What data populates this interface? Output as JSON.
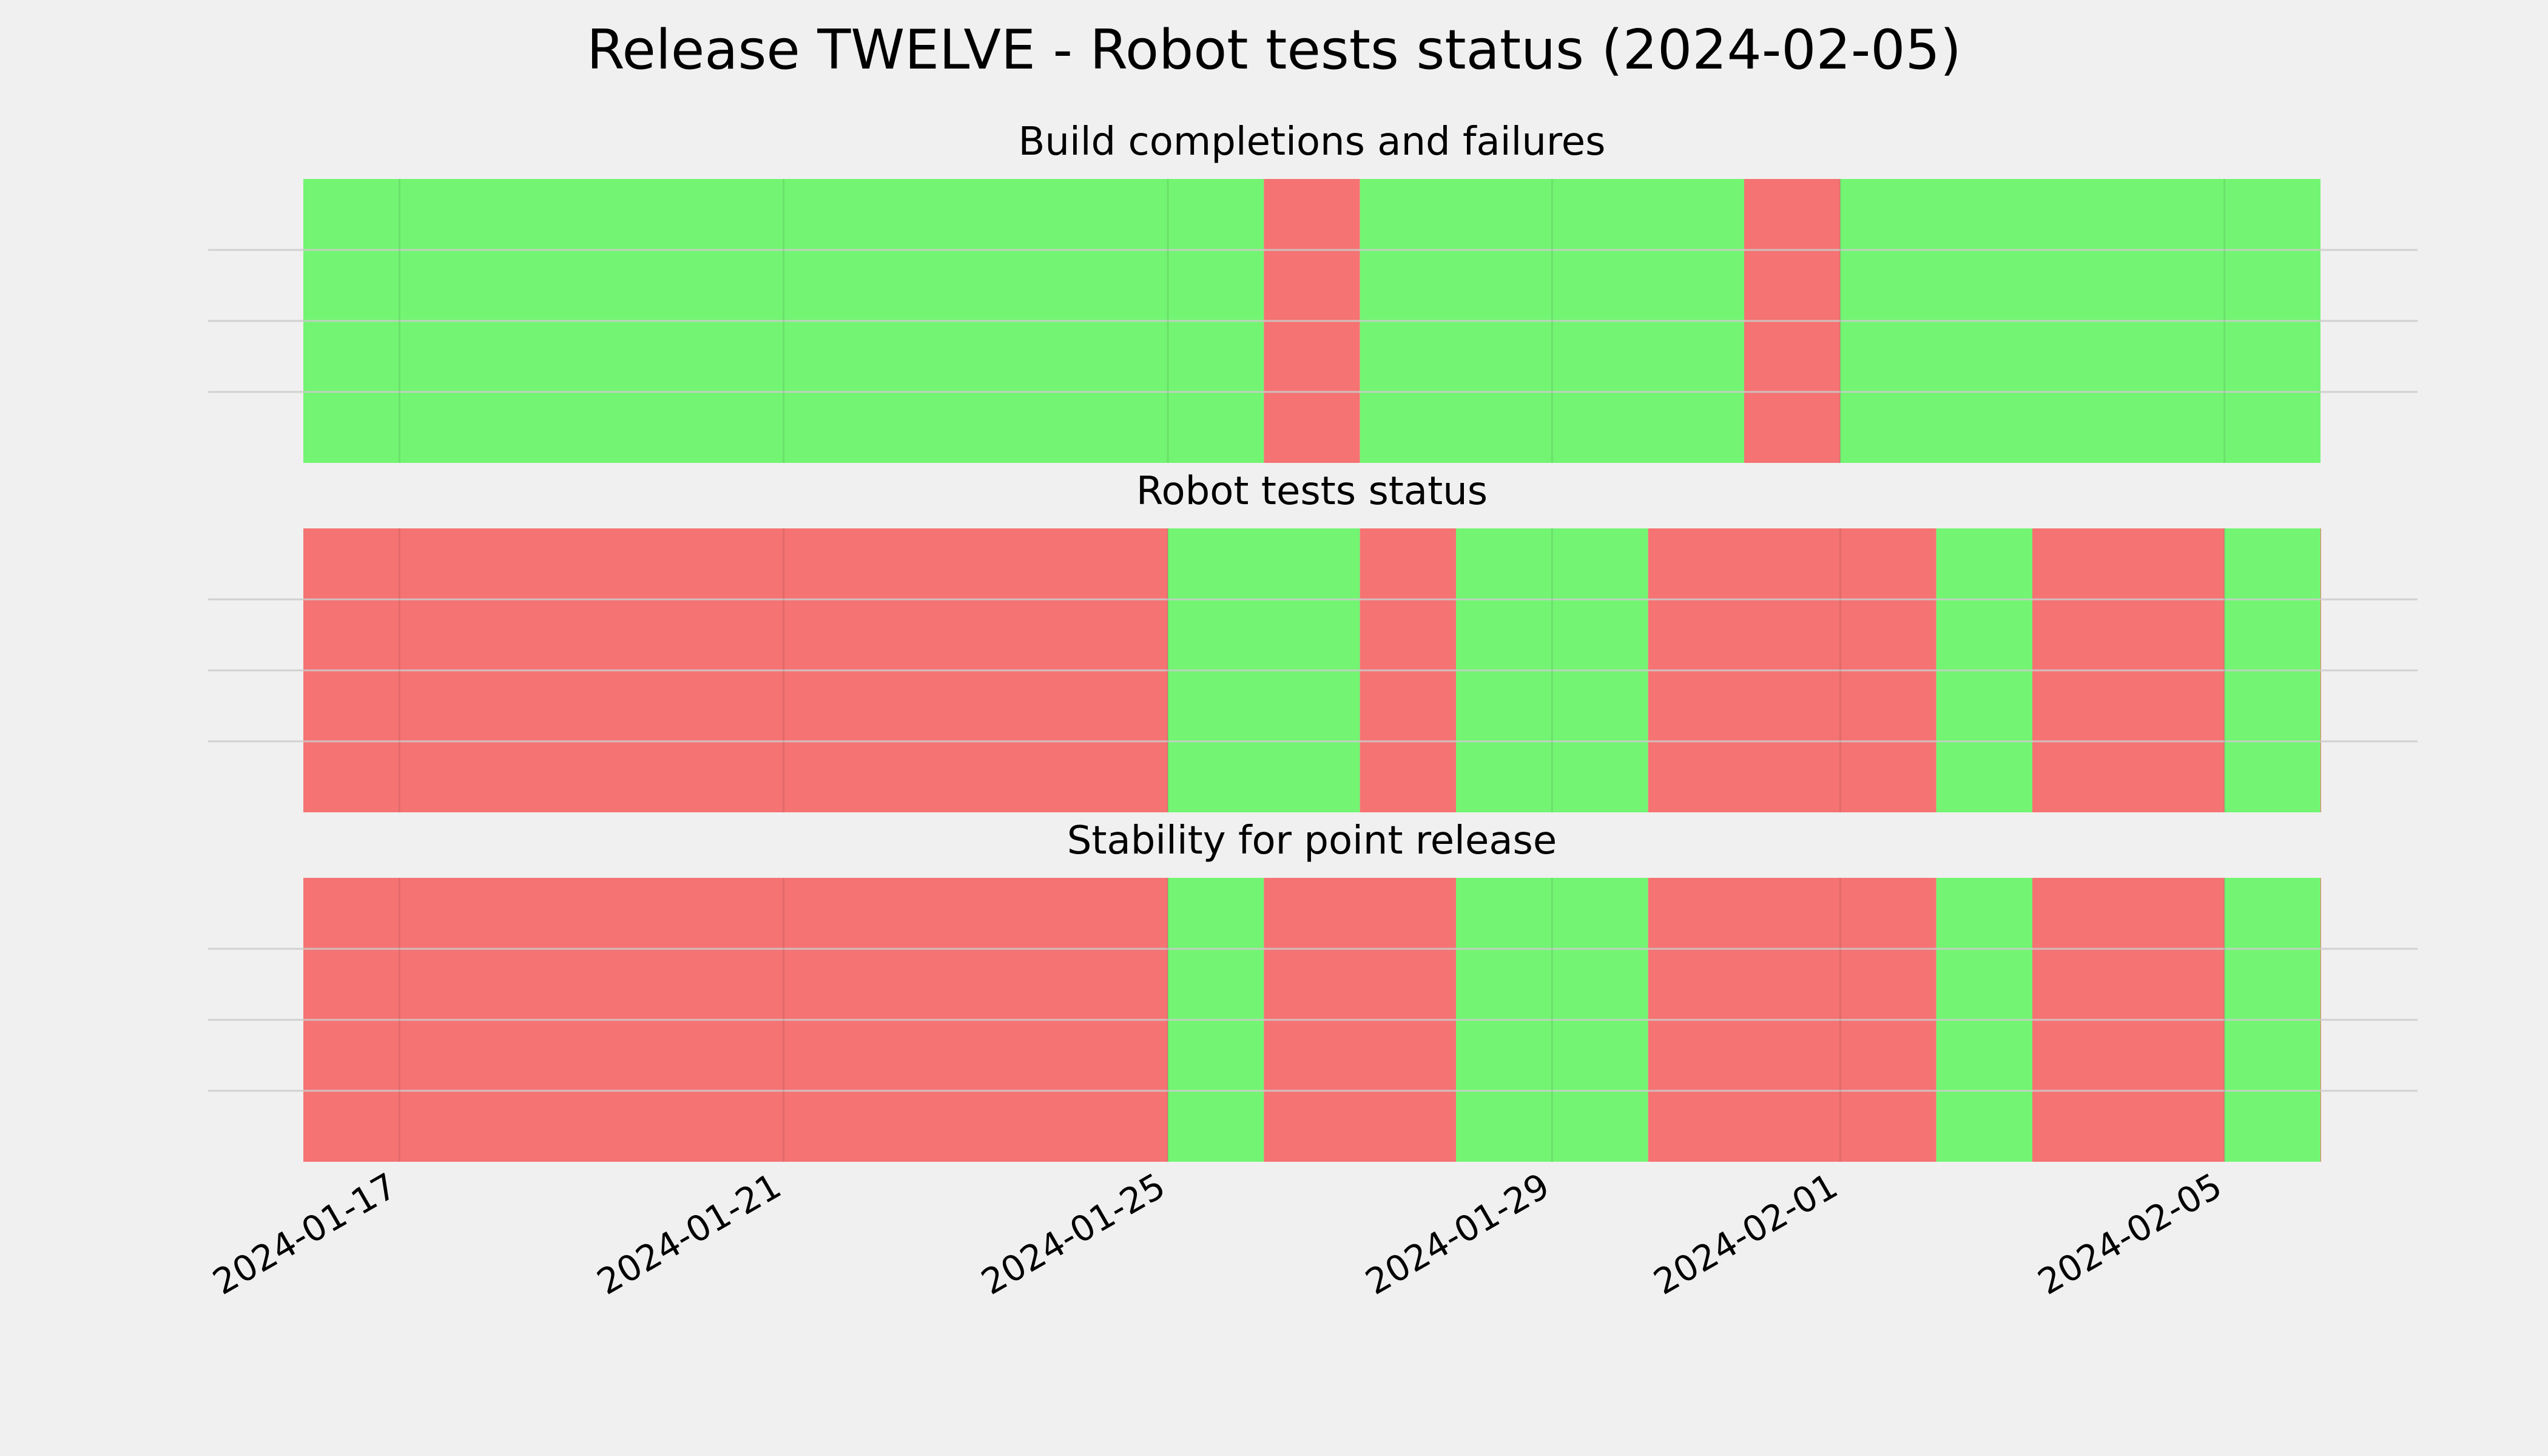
{
  "chart_data": {
    "type": "timeline",
    "title": "Release TWELVE - Robot tests status (2024-02-05)",
    "x_axis": {
      "type": "date",
      "range": [
        "2024-01-16",
        "2024-02-06"
      ],
      "ticks": [
        "2024-01-17",
        "2024-01-21",
        "2024-01-25",
        "2024-01-29",
        "2024-02-01",
        "2024-02-05"
      ],
      "tick_rotation_degrees": 30
    },
    "grid": true,
    "colors": {
      "pass": "#73f573",
      "fail": "#f57373",
      "background": "#f0f0f0",
      "grid": "#cbcbcb"
    },
    "panels": [
      {
        "title": "Build completions and failures",
        "segments": [
          {
            "start": "2024-01-16",
            "end": "2024-01-26",
            "status": "pass"
          },
          {
            "start": "2024-01-26",
            "end": "2024-01-27",
            "status": "fail"
          },
          {
            "start": "2024-01-27",
            "end": "2024-01-31",
            "status": "pass"
          },
          {
            "start": "2024-01-31",
            "end": "2024-02-01",
            "status": "fail"
          },
          {
            "start": "2024-02-01",
            "end": "2024-02-06",
            "status": "pass"
          }
        ]
      },
      {
        "title": "Robot tests status",
        "segments": [
          {
            "start": "2024-01-16",
            "end": "2024-01-25",
            "status": "fail"
          },
          {
            "start": "2024-01-25",
            "end": "2024-01-27",
            "status": "pass"
          },
          {
            "start": "2024-01-27",
            "end": "2024-01-28",
            "status": "fail"
          },
          {
            "start": "2024-01-28",
            "end": "2024-01-30",
            "status": "pass"
          },
          {
            "start": "2024-01-30",
            "end": "2024-02-02",
            "status": "fail"
          },
          {
            "start": "2024-02-02",
            "end": "2024-02-03",
            "status": "pass"
          },
          {
            "start": "2024-02-03",
            "end": "2024-02-05",
            "status": "fail"
          },
          {
            "start": "2024-02-05",
            "end": "2024-02-06",
            "status": "pass"
          },
          {
            "start": "2024-02-06",
            "end": "2024-02-06",
            "status": "fail"
          }
        ]
      },
      {
        "title": "Stability for point release",
        "segments": [
          {
            "start": "2024-01-16",
            "end": "2024-01-25",
            "status": "fail"
          },
          {
            "start": "2024-01-25",
            "end": "2024-01-26",
            "status": "pass"
          },
          {
            "start": "2024-01-26",
            "end": "2024-01-28",
            "status": "fail"
          },
          {
            "start": "2024-01-28",
            "end": "2024-01-30",
            "status": "pass"
          },
          {
            "start": "2024-01-30",
            "end": "2024-02-02",
            "status": "fail"
          },
          {
            "start": "2024-02-02",
            "end": "2024-02-03",
            "status": "pass"
          },
          {
            "start": "2024-02-03",
            "end": "2024-02-05",
            "status": "fail"
          },
          {
            "start": "2024-02-05",
            "end": "2024-02-06",
            "status": "pass"
          },
          {
            "start": "2024-02-06",
            "end": "2024-02-06",
            "status": "fail"
          }
        ]
      }
    ]
  }
}
